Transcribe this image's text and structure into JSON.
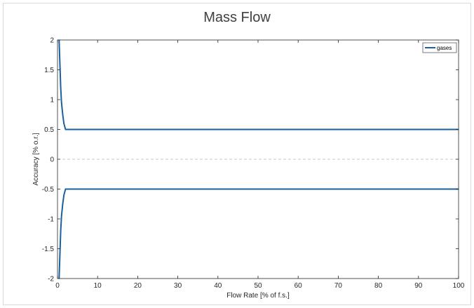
{
  "chart_data": {
    "type": "line",
    "title": "Mass Flow",
    "xlabel": "Flow Rate [% of f.s.]",
    "ylabel": "Accuracy [% o.r.]",
    "xlim": [
      0,
      100
    ],
    "ylim": [
      -2,
      2
    ],
    "xticks": [
      "0",
      "10",
      "20",
      "30",
      "40",
      "50",
      "60",
      "70",
      "80",
      "90",
      "100"
    ],
    "yticks": [
      "2",
      "1.5",
      "1",
      "0.5",
      "0",
      "-0.5",
      "-1",
      "-1.5",
      "-2"
    ],
    "grid": false,
    "legend_position": "top-right",
    "series": [
      {
        "name": "gases",
        "color": "#1f5fa0",
        "x": [
          0.4,
          0.6,
          0.8,
          1.0,
          1.3,
          1.6,
          2.0,
          3,
          10,
          20,
          30,
          40,
          50,
          60,
          70,
          80,
          90,
          100
        ],
        "y": [
          2.0,
          1.6,
          1.2,
          0.95,
          0.75,
          0.6,
          0.5,
          0.5,
          0.5,
          0.5,
          0.5,
          0.5,
          0.5,
          0.5,
          0.5,
          0.5,
          0.5,
          0.5
        ]
      },
      {
        "name": "",
        "color": "#1f5fa0",
        "x": [
          0.4,
          0.6,
          0.8,
          1.0,
          1.3,
          1.6,
          2.0,
          3,
          10,
          20,
          30,
          40,
          50,
          60,
          70,
          80,
          90,
          100
        ],
        "y": [
          -2.0,
          -1.6,
          -1.2,
          -0.95,
          -0.75,
          -0.6,
          -0.5,
          -0.5,
          -0.5,
          -0.5,
          -0.5,
          -0.5,
          -0.5,
          -0.5,
          -0.5,
          -0.5,
          -0.5,
          -0.5
        ]
      }
    ],
    "reference_line": {
      "y": 0,
      "style": "dashed",
      "color": "#c8c8c8"
    }
  }
}
